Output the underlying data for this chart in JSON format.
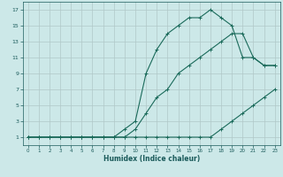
{
  "xlabel": "Humidex (Indice chaleur)",
  "bg_color": "#cce8e8",
  "grid_color": "#b0c8c8",
  "line_color": "#1a6a5a",
  "tick_color": "#1a5a5a",
  "xlim": [
    -0.5,
    23.5
  ],
  "ylim": [
    0.0,
    18.0
  ],
  "xticks": [
    0,
    1,
    2,
    3,
    4,
    5,
    6,
    7,
    8,
    9,
    10,
    11,
    12,
    13,
    14,
    15,
    16,
    17,
    18,
    19,
    20,
    21,
    22,
    23
  ],
  "yticks": [
    1,
    3,
    5,
    7,
    9,
    11,
    13,
    15,
    17
  ],
  "line1_x": [
    0,
    1,
    2,
    3,
    4,
    5,
    6,
    7,
    8,
    9,
    10,
    11,
    12,
    13,
    14,
    15,
    16,
    17,
    18,
    19,
    20,
    21,
    22,
    23
  ],
  "line1_y": [
    1,
    1,
    1,
    1,
    1,
    1,
    1,
    1,
    1,
    1,
    1,
    1,
    1,
    1,
    1,
    1,
    1,
    1,
    2,
    3,
    4,
    5,
    6,
    7
  ],
  "line2_x": [
    0,
    1,
    2,
    3,
    4,
    5,
    6,
    7,
    8,
    9,
    10,
    11,
    12,
    13,
    14,
    15,
    16,
    17,
    18,
    19,
    20,
    21,
    22,
    23
  ],
  "line2_y": [
    1,
    1,
    1,
    1,
    1,
    1,
    1,
    1,
    1,
    2,
    3,
    9,
    12,
    14,
    15,
    16,
    16,
    17,
    16,
    15,
    11,
    11,
    10,
    10
  ],
  "line3_x": [
    0,
    1,
    2,
    3,
    4,
    5,
    6,
    7,
    8,
    9,
    10,
    11,
    12,
    13,
    14,
    15,
    16,
    17,
    18,
    19,
    20,
    21,
    22,
    23
  ],
  "line3_y": [
    1,
    1,
    1,
    1,
    1,
    1,
    1,
    1,
    1,
    1,
    2,
    4,
    6,
    7,
    9,
    10,
    11,
    12,
    13,
    14,
    14,
    11,
    10,
    10
  ]
}
